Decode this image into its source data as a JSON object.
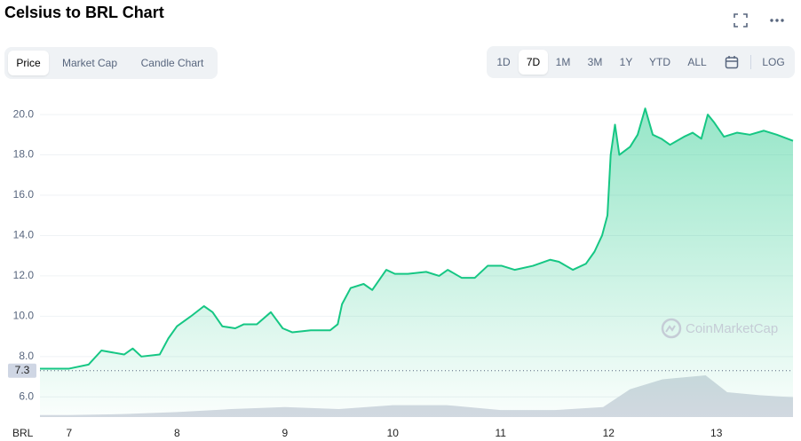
{
  "chart_data": {
    "type": "area",
    "title": "Celsius to BRL Chart",
    "currency_label": "BRL",
    "watermark": "CoinMarketCap",
    "tabs": [
      "Price",
      "Market Cap",
      "Candle Chart"
    ],
    "active_tab": 0,
    "ranges": [
      "1D",
      "7D",
      "1M",
      "3M",
      "1Y",
      "YTD",
      "ALL"
    ],
    "active_range": 1,
    "scale_toggle": "LOG",
    "x": [
      6.73,
      7.0,
      7.18,
      7.3,
      7.51,
      7.59,
      7.67,
      7.84,
      7.92,
      8.0,
      8.13,
      8.25,
      8.33,
      8.42,
      8.54,
      8.62,
      8.74,
      8.87,
      8.98,
      9.07,
      9.24,
      9.42,
      9.49,
      9.53,
      9.61,
      9.73,
      9.81,
      9.94,
      10.02,
      10.14,
      10.31,
      10.43,
      10.51,
      10.64,
      10.76,
      10.88,
      11.01,
      11.13,
      11.3,
      11.46,
      11.54,
      11.67,
      11.79,
      11.87,
      11.94,
      11.99,
      12.02,
      12.06,
      12.1,
      12.2,
      12.27,
      12.34,
      12.41,
      12.49,
      12.57,
      12.7,
      12.78,
      12.86,
      12.92,
      12.98,
      13.07,
      13.19,
      13.31,
      13.44,
      13.56,
      13.71
    ],
    "series": [
      {
        "color": "#16c784",
        "values": [
          7.4,
          7.4,
          7.6,
          8.3,
          8.1,
          8.4,
          8.0,
          8.1,
          8.9,
          9.5,
          10.0,
          10.5,
          10.2,
          9.5,
          9.4,
          9.6,
          9.6,
          10.2,
          9.4,
          9.2,
          9.3,
          9.3,
          9.6,
          10.6,
          11.4,
          11.6,
          11.3,
          12.3,
          12.1,
          12.1,
          12.2,
          12.0,
          12.3,
          11.9,
          11.9,
          12.5,
          12.5,
          12.3,
          12.5,
          12.8,
          12.7,
          12.3,
          12.6,
          13.2,
          14.0,
          15.0,
          18.0,
          19.5,
          18.0,
          18.4,
          19.0,
          20.3,
          19.0,
          18.8,
          18.5,
          18.9,
          19.1,
          18.8,
          20.0,
          19.6,
          18.9,
          19.1,
          19.0,
          19.2,
          19.0,
          18.7
        ]
      }
    ],
    "volume_x": [
      6.73,
      7.0,
      7.5,
      8.0,
      8.5,
      9.0,
      9.5,
      10.0,
      10.5,
      11.0,
      11.5,
      11.95,
      12.2,
      12.5,
      12.9,
      13.1,
      13.4,
      13.71
    ],
    "volume_values": [
      2,
      2,
      3,
      5,
      8,
      10,
      8,
      12,
      12,
      7,
      7,
      10,
      28,
      38,
      42,
      25,
      22,
      20
    ],
    "volume_color": "#d5d9e2",
    "reference_value": 7.3,
    "xlim": [
      6.73,
      13.71
    ],
    "xticks": [
      7,
      8,
      9,
      10,
      11,
      12,
      13
    ],
    "ylim": [
      5.0,
      21.5
    ],
    "yticks": [
      {
        "value": 6,
        "label": "6.0"
      },
      {
        "value": 8,
        "label": "8.0"
      },
      {
        "value": 10,
        "label": "10.0"
      },
      {
        "value": 12,
        "label": "12.0"
      },
      {
        "value": 14,
        "label": "14.0"
      },
      {
        "value": 16,
        "label": "16.0"
      },
      {
        "value": 18,
        "label": "18.0"
      },
      {
        "value": 20,
        "label": "20.0"
      }
    ],
    "grid": true
  }
}
